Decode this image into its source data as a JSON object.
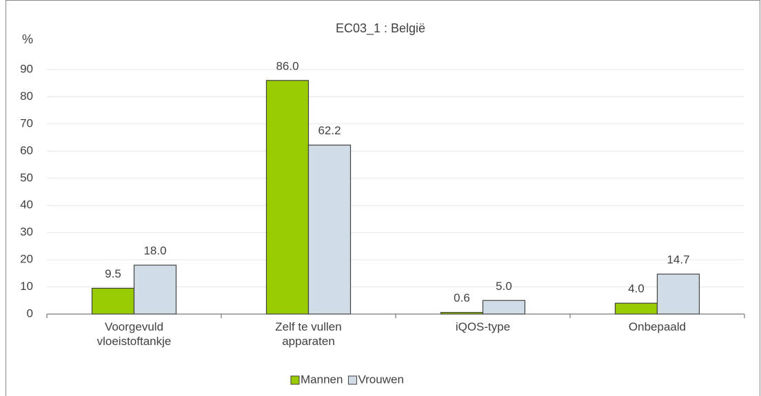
{
  "chart_data": {
    "type": "bar",
    "title": "EC03_1 : België",
    "y_label": "%",
    "categories": [
      "Voorgevuld vloeistoftankje",
      "Zelf te vullen apparaten",
      "iQOS-type",
      "Onbepaald"
    ],
    "series": [
      {
        "name": "Mannen",
        "color": "#99cc00",
        "values": [
          9.5,
          86,
          0.6,
          4
        ],
        "value_labels": [
          "9.5",
          "86.0",
          "0.6",
          "4.0"
        ]
      },
      {
        "name": "Vrouwen",
        "color": "#d0dde7",
        "values": [
          18,
          62.2,
          5,
          14.7
        ],
        "value_labels": [
          "18.0",
          "62.2",
          "5.0",
          "14.7"
        ]
      }
    ],
    "ylim": [
      0,
      90
    ],
    "yticks": [
      0,
      10,
      20,
      30,
      40,
      50,
      60,
      70,
      80,
      90
    ],
    "grid": true,
    "legend": "bottom"
  }
}
